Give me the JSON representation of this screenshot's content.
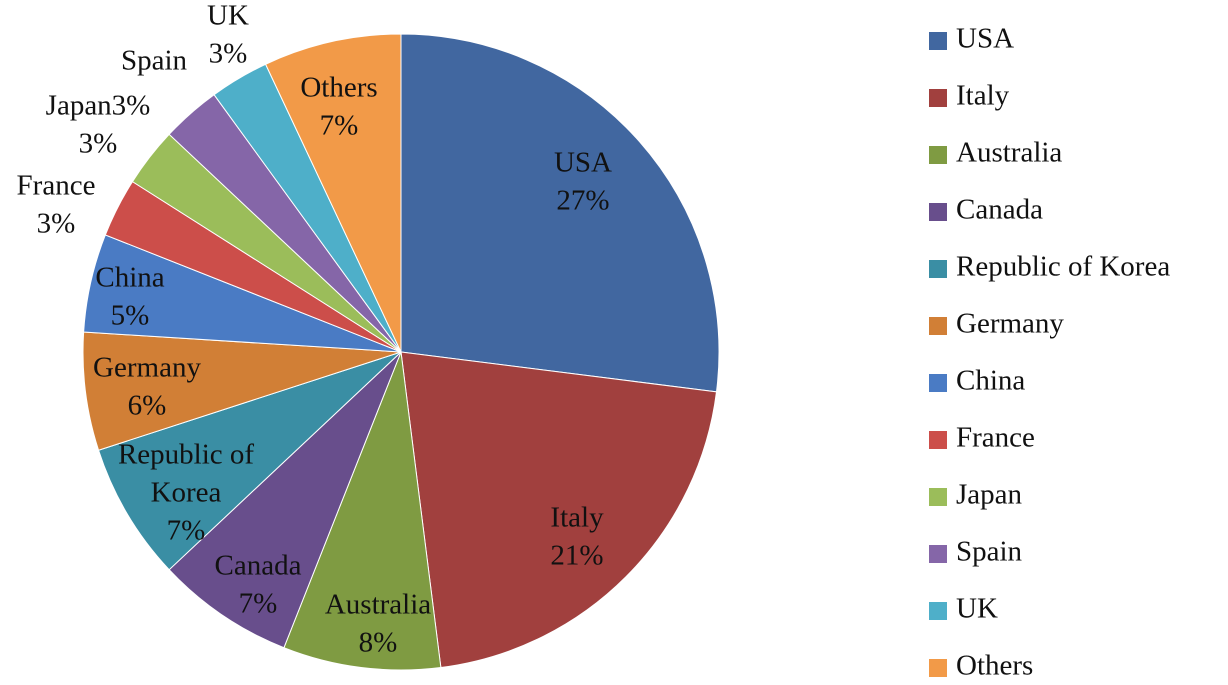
{
  "chart_data": {
    "type": "pie",
    "categories": [
      "USA",
      "Italy",
      "Australia",
      "Canada",
      "Republic of Korea",
      "Germany",
      "China",
      "France",
      "Japan",
      "Spain",
      "UK",
      "Others"
    ],
    "values": [
      27,
      21,
      8,
      7,
      7,
      6,
      5,
      3,
      3,
      3,
      3,
      7
    ],
    "value_unit": "%",
    "colors": [
      "#4167A0",
      "#A1403E",
      "#7F9B42",
      "#684E8C",
      "#3A8EA4",
      "#D17F36",
      "#4A7BC4",
      "#CC4E4A",
      "#9BBD5A",
      "#8566A8",
      "#4EAFC9",
      "#F29A48"
    ],
    "slice_labels": [
      [
        "USA",
        "27%"
      ],
      [
        "Italy",
        "21%"
      ],
      [
        "Australia",
        "8%"
      ],
      [
        "Canada",
        "7%"
      ],
      [
        "Republic of",
        "Korea",
        "7%"
      ],
      [
        "Germany",
        "6%"
      ],
      [
        "China",
        "5%"
      ],
      [
        "France",
        "3%"
      ],
      [
        "Japan3%",
        "3%"
      ],
      [
        "Spain",
        ""
      ],
      [
        "UK",
        "3%"
      ],
      [
        "Others",
        "7%"
      ]
    ],
    "legend": [
      "USA",
      "Italy",
      "Australia",
      "Canada",
      "Republic of Korea",
      "Germany",
      "China",
      "France",
      "Japan",
      "Spain",
      "UK",
      "Others"
    ],
    "legend_position": "right",
    "title": ""
  }
}
